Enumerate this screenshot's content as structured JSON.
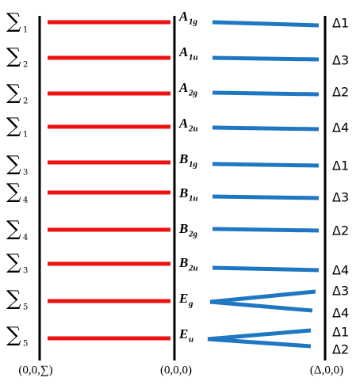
{
  "rows": [
    {
      "sigma": "∑",
      "sigma_sub": "1",
      "irrep": "A",
      "irrep_sub": "1g",
      "deltas": [
        "Δ1"
      ]
    },
    {
      "sigma": "∑",
      "sigma_sub": "2",
      "irrep": "A",
      "irrep_sub": "1u",
      "deltas": [
        "Δ3"
      ]
    },
    {
      "sigma": "∑",
      "sigma_sub": "2",
      "irrep": "A",
      "irrep_sub": "2g",
      "deltas": [
        "Δ2"
      ]
    },
    {
      "sigma": "∑",
      "sigma_sub": "1",
      "irrep": "A",
      "irrep_sub": "2u",
      "deltas": [
        "Δ4"
      ]
    },
    {
      "sigma": "∑",
      "sigma_sub": "3",
      "irrep": "B",
      "irrep_sub": "1g",
      "deltas": [
        "Δ1"
      ]
    },
    {
      "sigma": "∑",
      "sigma_sub": "4",
      "irrep": "B",
      "irrep_sub": "1u",
      "deltas": [
        "Δ3"
      ]
    },
    {
      "sigma": "∑",
      "sigma_sub": "4",
      "irrep": "B",
      "irrep_sub": "2g",
      "deltas": [
        "Δ2"
      ]
    },
    {
      "sigma": "∑",
      "sigma_sub": "3",
      "irrep": "B",
      "irrep_sub": "2u",
      "deltas": [
        "Δ4"
      ]
    },
    {
      "sigma": "∑",
      "sigma_sub": "5",
      "irrep": "E",
      "irrep_sub": "g",
      "deltas": [
        "Δ3",
        "Δ4"
      ]
    },
    {
      "sigma": "∑",
      "sigma_sub": "5",
      "irrep": "E",
      "irrep_sub": "u",
      "deltas": [
        "Δ1",
        "Δ2"
      ]
    }
  ],
  "axis_labels": [
    "(0,0,∑)",
    "(0,0,0)",
    "(Δ,0,0)"
  ]
}
